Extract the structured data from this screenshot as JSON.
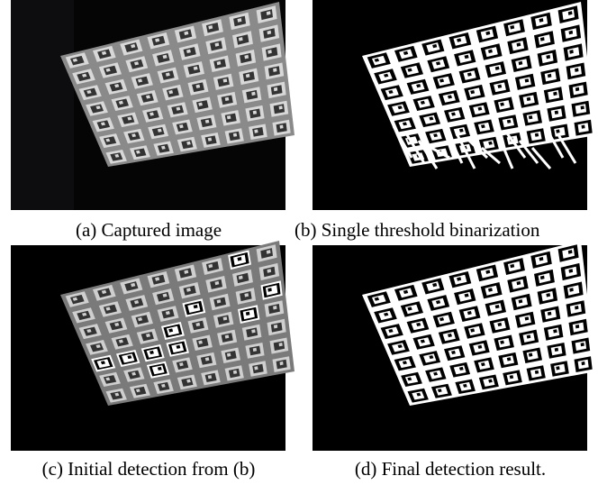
{
  "figure": {
    "panels": [
      {
        "caption": "(a) Captured image"
      },
      {
        "caption": "(b) Single threshold binarization"
      },
      {
        "caption": "(c) Initial detection from (b)"
      },
      {
        "caption": "(d) Final detection result."
      }
    ]
  }
}
